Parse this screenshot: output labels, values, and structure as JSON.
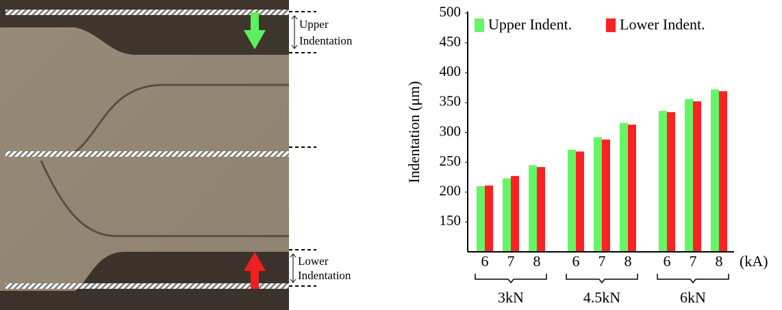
{
  "micrograph": {
    "upper_label": [
      "Upper",
      "Indentation"
    ],
    "lower_label": [
      "Lower",
      "Indentation"
    ]
  },
  "chart_data": {
    "type": "bar",
    "y_label": "Indentation (μm)",
    "x_unit": "(kA)",
    "categories": [
      "6",
      "7",
      "8",
      "6",
      "7",
      "8",
      "6",
      "7",
      "8"
    ],
    "group_labels": [
      "3kN",
      "4.5kN",
      "6kN"
    ],
    "series": [
      {
        "name": "Upper Indent.",
        "color": "#66f566",
        "values": [
          210,
          223,
          245,
          271,
          292,
          316,
          336,
          356,
          372
        ]
      },
      {
        "name": "Lower Indent.",
        "color": "#fa2222",
        "values": [
          211,
          227,
          242,
          268,
          288,
          313,
          334,
          352,
          369
        ]
      }
    ],
    "ylim": [
      100,
      500
    ],
    "yticks": [
      150,
      200,
      250,
      300,
      350,
      400,
      450,
      500
    ],
    "legend": "top"
  }
}
